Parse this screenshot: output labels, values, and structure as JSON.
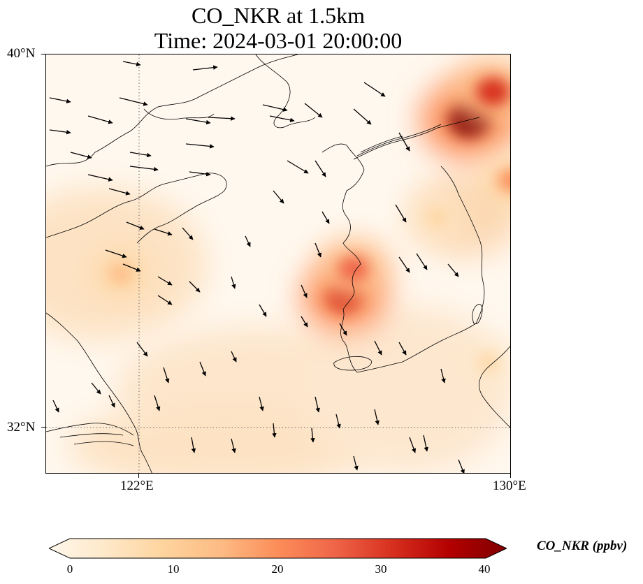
{
  "title_line1": "CO_NKR at 1.5km",
  "title_line2": "Time: 2024-03-01 20:00:00",
  "axes": {
    "lat_ticks": [
      {
        "label": "40°N",
        "value": 40
      },
      {
        "label": "32°N",
        "value": 32
      }
    ],
    "lon_ticks": [
      {
        "label": "122°E",
        "value": 122
      },
      {
        "label": "130°E",
        "value": 130
      }
    ],
    "lon_range": [
      120,
      130
    ],
    "lat_range": [
      31,
      40
    ],
    "gridlines": "dotted at 122°E and 32°N"
  },
  "colorbar": {
    "title": "CO_NKR (ppbv)",
    "ticks": [
      "0",
      "10",
      "20",
      "30",
      "40"
    ],
    "range": [
      0,
      40
    ],
    "extend": "both",
    "colormap": "OrRd",
    "colors": [
      "#fff7ec",
      "#fee8c8",
      "#fdd49e",
      "#fdbb84",
      "#fc8d59",
      "#ef6548",
      "#d7301f",
      "#b30000",
      "#7f0000"
    ]
  },
  "chart_data": {
    "type": "heatmap",
    "title": "CO_NKR at 1.5km / Time: 2024-03-01 20:00:00",
    "units": "ppbv",
    "hotspots": [
      {
        "lon": 129.1,
        "lat": 38.6,
        "value": 40
      },
      {
        "lon": 129.6,
        "lat": 39.2,
        "value": 30
      },
      {
        "lon": 126.4,
        "lat": 34.8,
        "value": 32
      },
      {
        "lon": 126.6,
        "lat": 35.4,
        "value": 25
      },
      {
        "lon": 121.6,
        "lat": 35.3,
        "value": 14
      },
      {
        "lon": 128.4,
        "lat": 36.5,
        "value": 12
      },
      {
        "lon": 130.0,
        "lat": 37.3,
        "value": 20
      },
      {
        "lon": 129.5,
        "lat": 33.4,
        "value": 10
      }
    ],
    "wind_vectors": "southeastward flow over Yellow Sea and Korean Peninsula"
  }
}
